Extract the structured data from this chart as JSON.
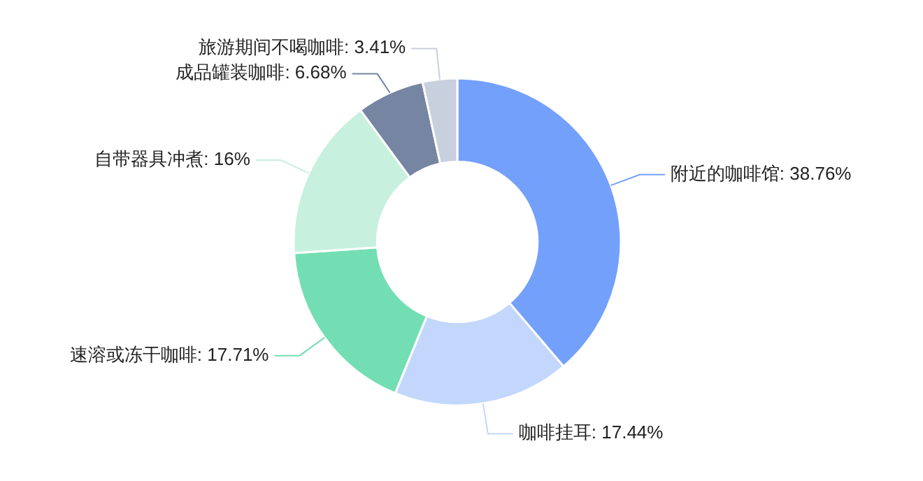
{
  "chart_data": {
    "type": "donut",
    "categories": [
      "附近的咖啡馆",
      "咖啡挂耳",
      "速溶或冻干咖啡",
      "自带器具冲煮",
      "成品罐装咖啡",
      "旅游期间不喝咖啡"
    ],
    "values": [
      38.76,
      17.44,
      17.71,
      16,
      6.68,
      3.41
    ],
    "value_labels": [
      "38.76%",
      "17.44%",
      "17.71%",
      "16%",
      "6.68%",
      "3.41%"
    ],
    "colors": [
      "#73a0fa",
      "#c2d7fb",
      "#73deb3",
      "#c7f0df",
      "#7585a2",
      "#c8d0dd"
    ]
  }
}
